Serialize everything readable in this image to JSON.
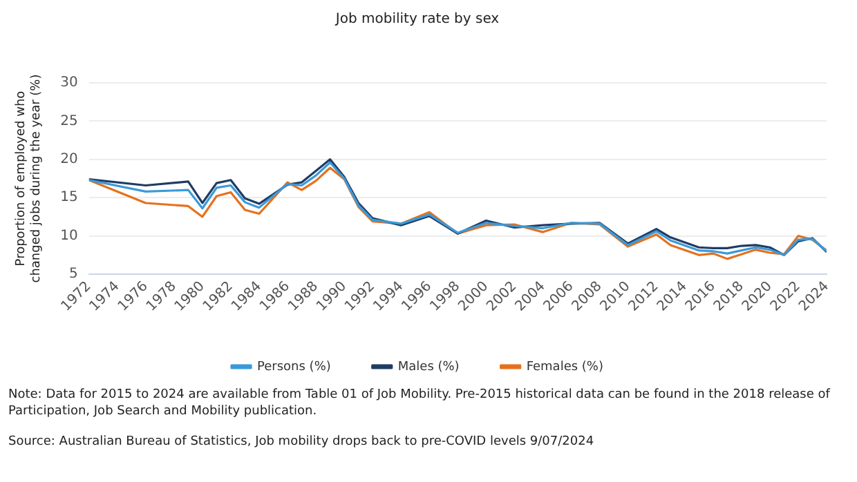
{
  "chart_data": {
    "type": "line",
    "title": "Job mobility rate by sex",
    "ylabel": "Proportion of employed who\nchanged jobs during the year (%)",
    "x": [
      1972,
      1976,
      1979,
      1980,
      1981,
      1982,
      1983,
      1984,
      1986,
      1987,
      1988,
      1989,
      1990,
      1991,
      1992,
      1994,
      1996,
      1998,
      2000,
      2002,
      2004,
      2006,
      2008,
      2010,
      2012,
      2013,
      2015,
      2016,
      2017,
      2018,
      2019,
      2020,
      2021,
      2022,
      2023,
      2024
    ],
    "series": [
      {
        "name": "Persons (%)",
        "color": "#3a9ad9",
        "values": [
          17.3,
          15.8,
          16.0,
          13.6,
          16.3,
          16.6,
          14.4,
          13.7,
          16.8,
          16.6,
          17.9,
          19.6,
          17.5,
          14.0,
          12.1,
          11.6,
          12.8,
          10.4,
          11.7,
          11.3,
          11.0,
          11.7,
          11.6,
          8.8,
          10.6,
          9.4,
          8.1,
          8.0,
          7.7,
          8.1,
          8.5,
          8.2,
          7.5,
          9.5,
          9.6,
          8.0
        ]
      },
      {
        "name": "Males (%)",
        "color": "#1f3c64",
        "values": [
          17.4,
          16.6,
          17.1,
          14.3,
          16.9,
          17.3,
          14.9,
          14.2,
          16.7,
          17.0,
          18.5,
          20.0,
          17.7,
          14.3,
          12.3,
          11.4,
          12.6,
          10.3,
          12.0,
          11.1,
          11.4,
          11.6,
          11.7,
          9.0,
          10.9,
          9.8,
          8.5,
          8.4,
          8.4,
          8.7,
          8.8,
          8.5,
          7.5,
          9.3,
          9.7,
          7.9
        ]
      },
      {
        "name": "Females (%)",
        "color": "#e5711d",
        "values": [
          17.3,
          14.3,
          13.9,
          12.5,
          15.2,
          15.7,
          13.4,
          12.9,
          17.0,
          16.0,
          17.2,
          18.9,
          17.4,
          13.8,
          11.9,
          11.6,
          13.1,
          10.3,
          11.4,
          11.5,
          10.5,
          11.7,
          11.5,
          8.6,
          10.2,
          8.8,
          7.5,
          7.7,
          7.0,
          7.6,
          8.2,
          7.8,
          7.6,
          10.0,
          9.5,
          8.1
        ]
      }
    ],
    "xlim": [
      1972,
      2024
    ],
    "xticks": [
      1972,
      1974,
      1976,
      1978,
      1980,
      1982,
      1984,
      1986,
      1988,
      1990,
      1992,
      1994,
      1996,
      1998,
      2000,
      2002,
      2004,
      2006,
      2008,
      2010,
      2012,
      2014,
      2016,
      2018,
      2020,
      2022,
      2024
    ],
    "ylim": [
      5,
      30
    ],
    "yticks": [
      5,
      10,
      15,
      20,
      25,
      30
    ],
    "grid": "y",
    "legend": "bottom",
    "marker": "none",
    "line_style": "solid",
    "annotations": [
      "Note: Data for 2015 to 2024 are available from Table 01 of Job Mobility. Pre-2015 historical data can be found in the 2018 release of Participation, Job Search and Mobility publication.",
      "Source: Australian Bureau of Statistics, Job mobility drops back to pre-COVID levels 9/07/2024"
    ]
  }
}
